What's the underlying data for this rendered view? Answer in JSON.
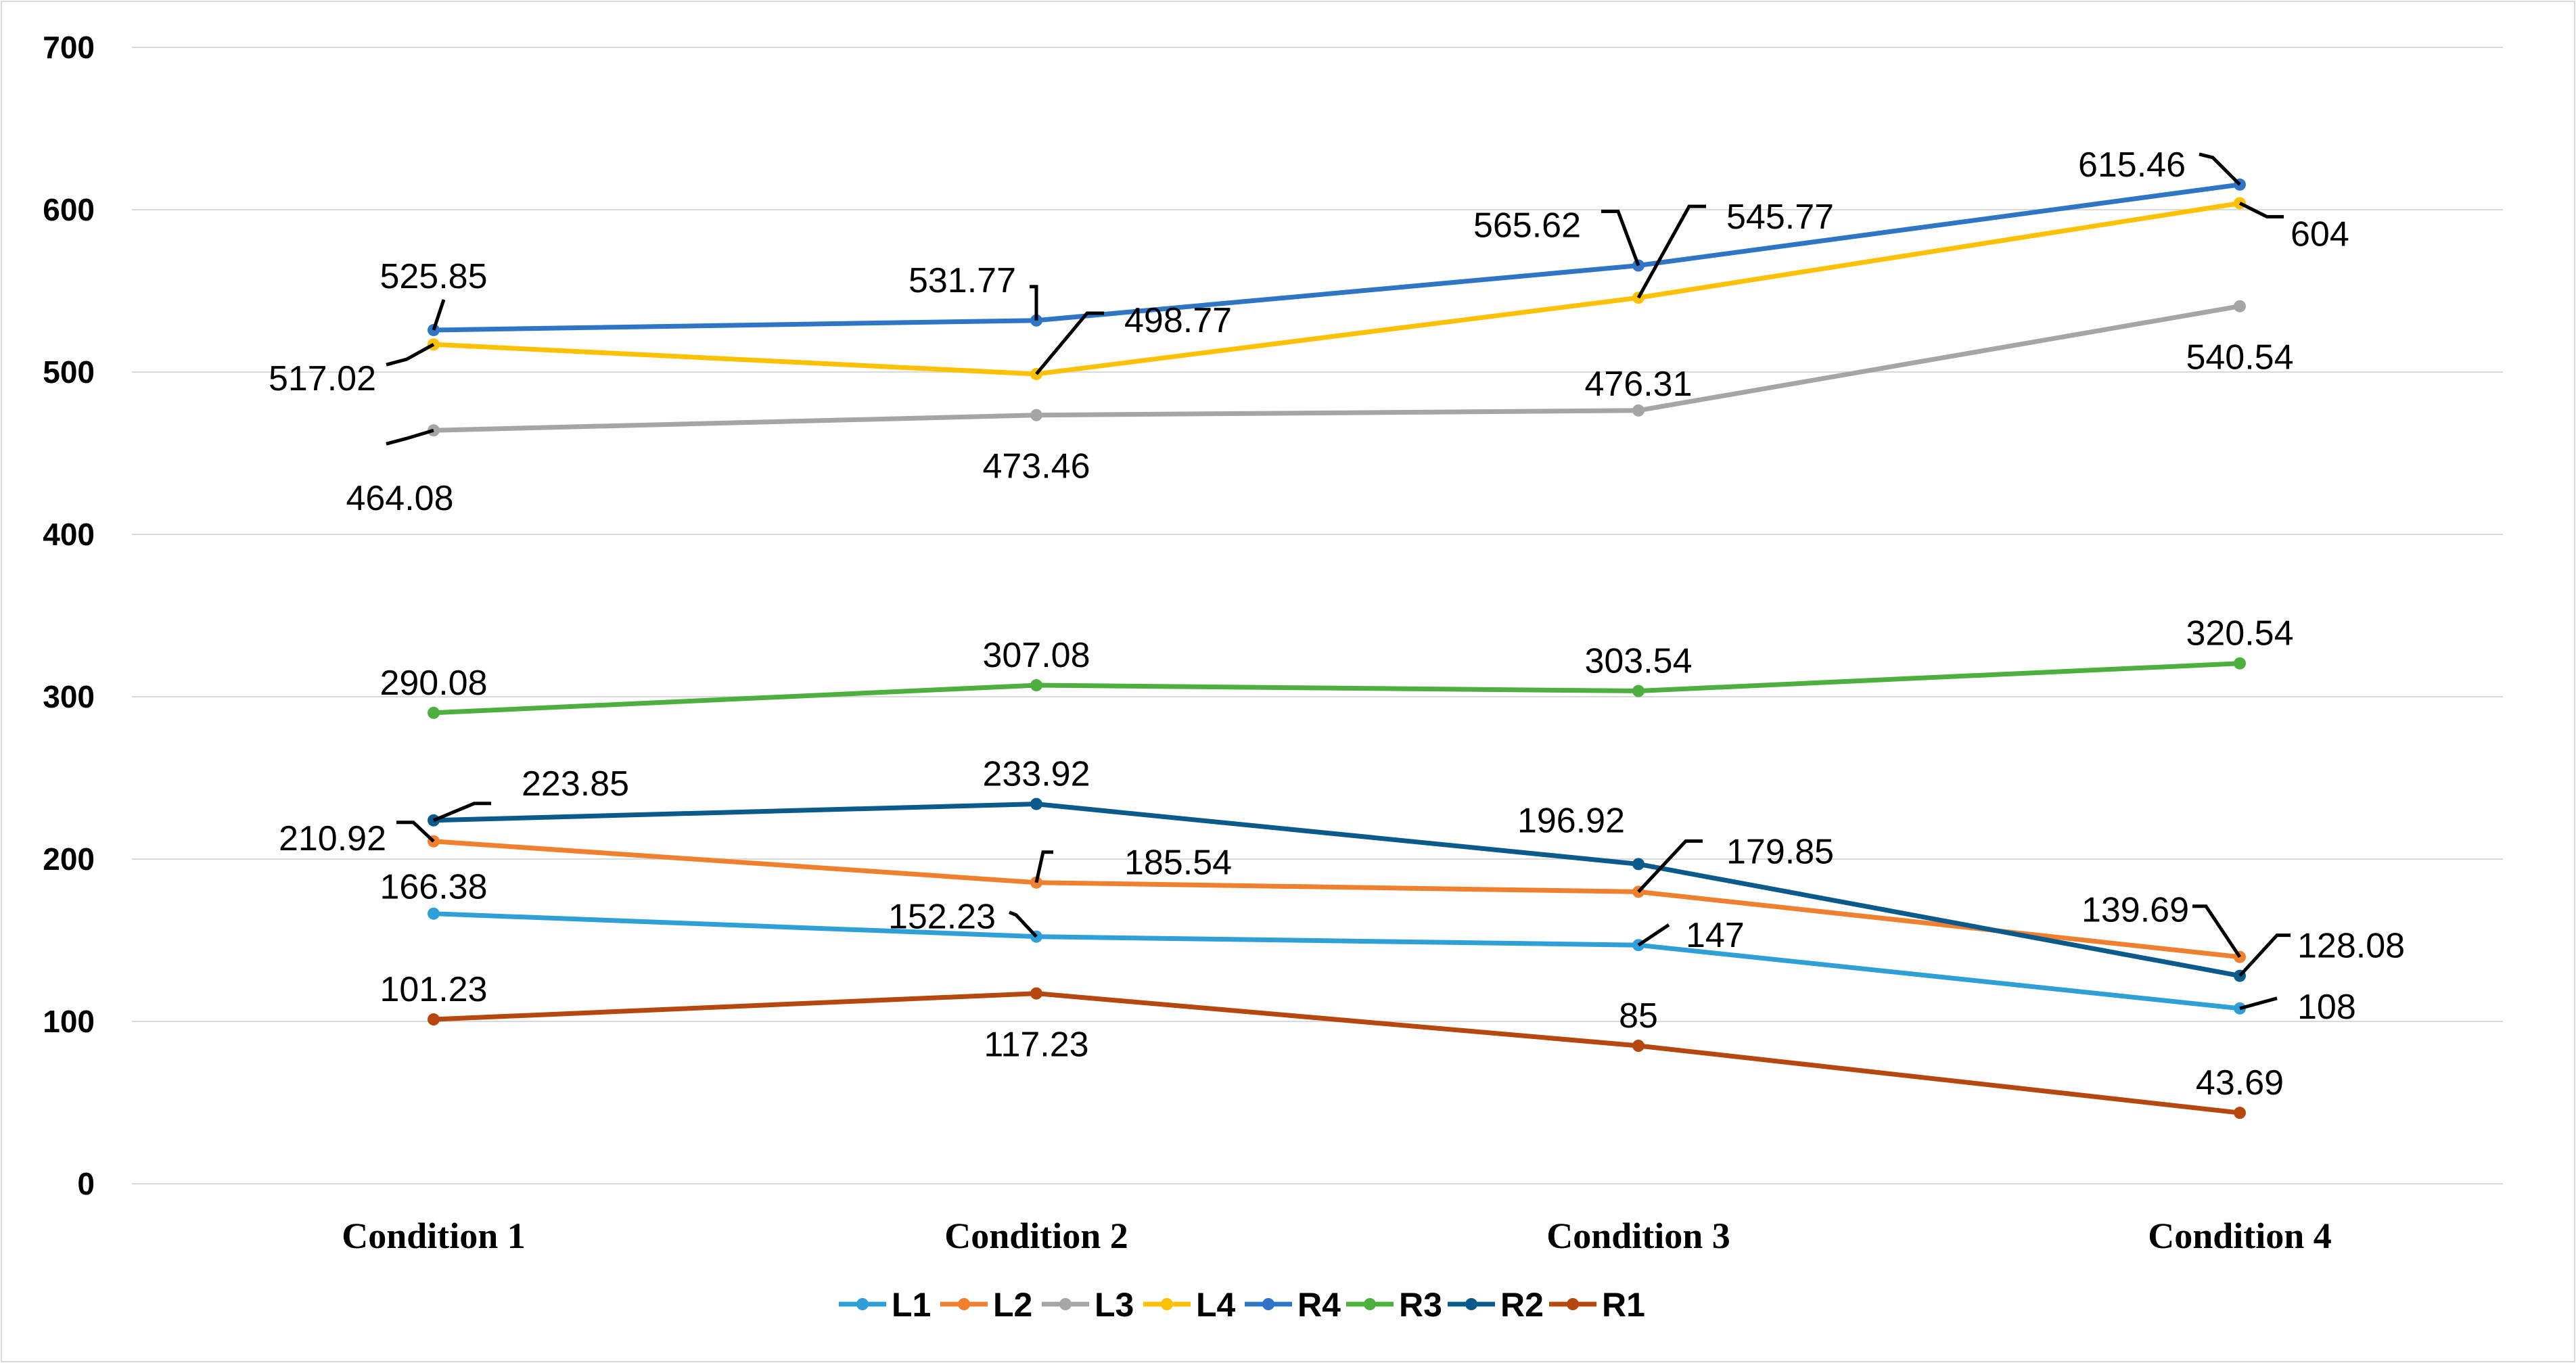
{
  "chart_data": {
    "type": "line",
    "title": "",
    "xlabel": "",
    "ylabel": "",
    "ylim": [
      0,
      700
    ],
    "yticks": [
      "0",
      "100",
      "200",
      "300",
      "400",
      "500",
      "600",
      "700"
    ],
    "categories": [
      "Condition 1",
      "Condition 2",
      "Condition 3",
      "Condition 4"
    ],
    "grid": true,
    "legend_position": "bottom",
    "series": [
      {
        "name": "L1",
        "color": "#2E9FD9",
        "values": [
          166.38,
          152.23,
          147,
          108
        ],
        "labels": [
          "166.38",
          "152.23",
          "147",
          "108"
        ]
      },
      {
        "name": "L2",
        "color": "#F07F2E",
        "values": [
          210.92,
          185.54,
          179.85,
          139.69
        ],
        "labels": [
          "210.92",
          "185.54",
          "179.85",
          "139.69"
        ]
      },
      {
        "name": "L3",
        "color": "#A5A5A5",
        "values": [
          464.08,
          473.46,
          476.31,
          540.54
        ],
        "labels": [
          "464.08",
          "473.46",
          "476.31",
          "540.54"
        ]
      },
      {
        "name": "L4",
        "color": "#FFC000",
        "values": [
          517.02,
          498.77,
          545.77,
          604
        ],
        "labels": [
          "517.02",
          "498.77",
          "545.77",
          "604"
        ]
      },
      {
        "name": "R4",
        "color": "#2E75C8",
        "values": [
          525.85,
          531.77,
          565.62,
          615.46
        ],
        "labels": [
          "525.85",
          "531.77",
          "565.62",
          "615.46"
        ]
      },
      {
        "name": "R3",
        "color": "#4CAF3E",
        "values": [
          290.08,
          307.08,
          303.54,
          320.54
        ],
        "labels": [
          "290.08",
          "307.08",
          "303.54",
          "320.54"
        ]
      },
      {
        "name": "R2",
        "color": "#0B5A8C",
        "values": [
          223.85,
          233.92,
          196.92,
          128.08
        ],
        "labels": [
          "223.85",
          "233.92",
          "196.92",
          "128.08"
        ]
      },
      {
        "name": "R1",
        "color": "#B5470F",
        "values": [
          101.23,
          117.23,
          85,
          43.69
        ],
        "labels": [
          "101.23",
          "117.23",
          "85",
          "43.69"
        ]
      }
    ]
  }
}
